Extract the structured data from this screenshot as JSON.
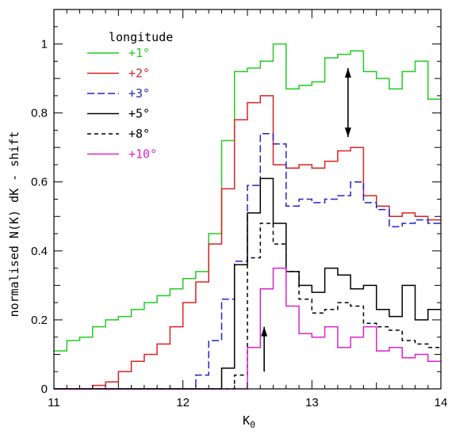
{
  "chart_data": {
    "type": "line",
    "step": true,
    "xlabel": "K",
    "xlabel_subscript": "0",
    "ylabel": "normalised N(K) dK - shift",
    "xlim": [
      11,
      14
    ],
    "ylim": [
      0,
      1.1
    ],
    "xticks": [
      "11",
      "12",
      "13",
      "14"
    ],
    "yticks": [
      "0",
      "0.2",
      "0.4",
      "0.6",
      "0.8",
      "1"
    ],
    "legend": {
      "title": "longitude",
      "placement": "top-left"
    },
    "bin_edges": [
      11.0,
      11.1,
      11.2,
      11.3,
      11.4,
      11.5,
      11.6,
      11.7,
      11.8,
      11.9,
      12.0,
      12.1,
      12.2,
      12.3,
      12.4,
      12.5,
      12.6,
      12.7,
      12.8,
      12.9,
      13.0,
      13.1,
      13.2,
      13.3,
      13.4,
      13.5,
      13.6,
      13.7,
      13.8,
      13.9,
      14.0
    ],
    "series": [
      {
        "name": "+1°",
        "color": "#22cc22",
        "dash": "",
        "values": [
          0.11,
          0.14,
          0.15,
          0.18,
          0.2,
          0.21,
          0.23,
          0.25,
          0.27,
          0.29,
          0.32,
          0.34,
          0.45,
          0.72,
          0.92,
          0.93,
          0.95,
          1.0,
          0.87,
          0.88,
          0.89,
          0.96,
          0.97,
          0.98,
          0.92,
          0.9,
          0.87,
          0.92,
          0.95,
          0.84
        ]
      },
      {
        "name": "+2°",
        "color": "#dd2222",
        "dash": "",
        "values": [
          0.0,
          0.0,
          0.0,
          0.01,
          0.02,
          0.05,
          0.08,
          0.1,
          0.13,
          0.18,
          0.25,
          0.31,
          0.42,
          0.58,
          0.78,
          0.83,
          0.85,
          0.65,
          0.64,
          0.65,
          0.64,
          0.66,
          0.69,
          0.7,
          0.56,
          0.53,
          0.5,
          0.51,
          0.5,
          0.49
        ]
      },
      {
        "name": "+3°",
        "color": "#2222cc",
        "dash": "9,4",
        "values": [
          0.0,
          0.0,
          0.0,
          0.0,
          0.0,
          0.0,
          0.0,
          0.0,
          0.0,
          0.0,
          0.0,
          0.04,
          0.14,
          0.26,
          0.37,
          0.59,
          0.74,
          0.71,
          0.53,
          0.55,
          0.54,
          0.55,
          0.56,
          0.6,
          0.54,
          0.52,
          0.47,
          0.48,
          0.49,
          0.48
        ]
      },
      {
        "name": "+5°",
        "color": "#000000",
        "dash": "",
        "values": [
          0.0,
          0.0,
          0.0,
          0.0,
          0.0,
          0.0,
          0.0,
          0.0,
          0.0,
          0.0,
          0.0,
          0.0,
          0.0,
          0.06,
          0.36,
          0.51,
          0.61,
          0.48,
          0.34,
          0.3,
          0.28,
          0.35,
          0.33,
          0.29,
          0.3,
          0.23,
          0.21,
          0.3,
          0.2,
          0.23
        ]
      },
      {
        "name": "+8°",
        "color": "#000000",
        "dash": "5,4",
        "values": [
          0.0,
          0.0,
          0.0,
          0.0,
          0.0,
          0.0,
          0.0,
          0.0,
          0.0,
          0.0,
          0.0,
          0.0,
          0.0,
          0.0,
          0.04,
          0.38,
          0.48,
          0.42,
          0.34,
          0.26,
          0.22,
          0.23,
          0.25,
          0.24,
          0.19,
          0.18,
          0.17,
          0.14,
          0.13,
          0.12
        ]
      },
      {
        "name": "+10°",
        "color": "#dd22cc",
        "dash": "",
        "values": [
          0.0,
          0.0,
          0.0,
          0.0,
          0.0,
          0.0,
          0.0,
          0.0,
          0.0,
          0.0,
          0.0,
          0.0,
          0.0,
          0.0,
          0.0,
          0.12,
          0.29,
          0.35,
          0.24,
          0.16,
          0.15,
          0.18,
          0.12,
          0.15,
          0.18,
          0.11,
          0.12,
          0.09,
          0.1,
          0.08
        ]
      }
    ],
    "annotations": [
      {
        "type": "double-arrow",
        "x": 13.28,
        "y_from": 0.73,
        "y_to": 0.93
      },
      {
        "type": "up-arrow",
        "x": 12.63,
        "y_from": 0.05,
        "y_to": 0.18
      }
    ]
  }
}
